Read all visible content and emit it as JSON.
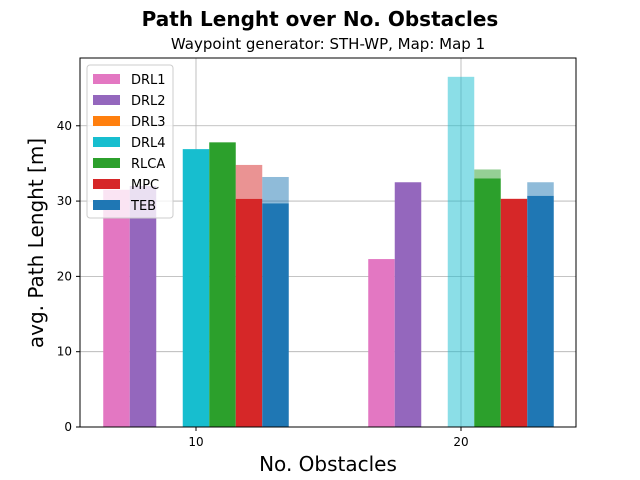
{
  "chart_data": {
    "type": "bar",
    "title": "Path Lenght over No. Obstacles",
    "subtitle": "Waypoint generator: STH-WP, Map: Map 1",
    "xlabel": "No. Obstacles",
    "ylabel": "avg. Path Lenght [m]",
    "categories": [
      "10",
      "20"
    ],
    "ylim": [
      0,
      49
    ],
    "yticks": [
      0,
      10,
      20,
      30,
      40
    ],
    "grid": true,
    "legend_position": "top-left",
    "series": [
      {
        "name": "DRL1",
        "color": "#e377c2",
        "values": [
          31.5,
          22.3
        ],
        "upper": [
          null,
          null
        ]
      },
      {
        "name": "DRL2",
        "color": "#9467bd",
        "values": [
          32.0,
          32.5
        ],
        "upper": [
          null,
          null
        ]
      },
      {
        "name": "DRL3",
        "color": "#ff7f0e",
        "values": [
          null,
          null
        ],
        "upper": [
          null,
          null
        ]
      },
      {
        "name": "DRL4",
        "color": "#17becf",
        "values": [
          36.9,
          null
        ],
        "upper": [
          null,
          46.5
        ]
      },
      {
        "name": "RLCA",
        "color": "#2ca02c",
        "values": [
          37.8,
          33.0
        ],
        "upper": [
          null,
          34.2
        ]
      },
      {
        "name": "MPC",
        "color": "#d62728",
        "values": [
          30.3,
          30.3
        ],
        "upper": [
          34.8,
          null
        ]
      },
      {
        "name": "TEB",
        "color": "#1f77b4",
        "values": [
          29.7,
          30.7
        ],
        "upper": [
          33.2,
          32.5
        ]
      }
    ]
  }
}
